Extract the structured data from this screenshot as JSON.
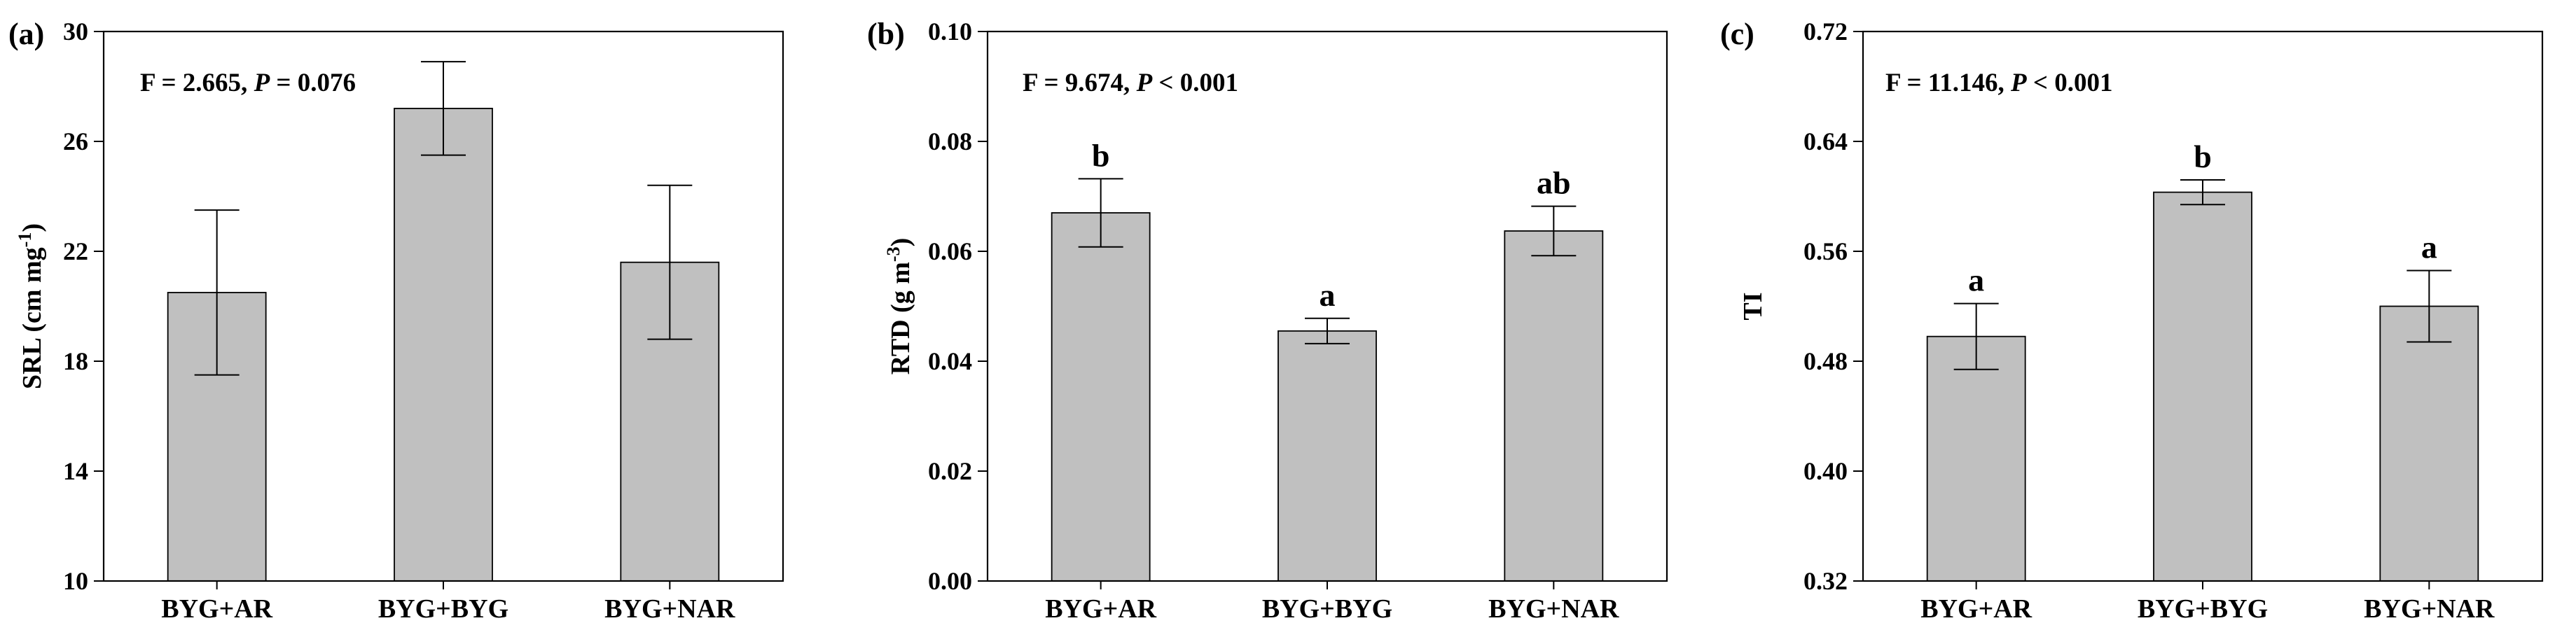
{
  "chart_data": [
    {
      "type": "bar",
      "panel": "(a)",
      "stat": {
        "f": "F = 2.665, ",
        "p_letter": "P",
        "p_rest": " = 0.076"
      },
      "ylabel": {
        "main": "SRL (cm mg",
        "sup": "-1",
        "close": ")"
      },
      "categories": [
        "BYG+AR",
        "BYG+BYG",
        "BYG+NAR"
      ],
      "values": [
        20.5,
        27.2,
        21.6
      ],
      "errors": [
        3.0,
        1.7,
        2.8
      ],
      "significance": [
        "",
        "",
        ""
      ],
      "ylim": [
        10,
        30
      ],
      "yticks": [
        10,
        14,
        18,
        22,
        26,
        30
      ],
      "ytick_labels": [
        "10",
        "14",
        "18",
        "22",
        "26",
        "30"
      ]
    },
    {
      "type": "bar",
      "panel": "(b)",
      "stat": {
        "f": "F = 9.674, ",
        "p_letter": "P",
        "p_rest": " < 0.001"
      },
      "ylabel": {
        "main": "RTD (g m",
        "sup": "-3",
        "close": ")"
      },
      "categories": [
        "BYG+AR",
        "BYG+BYG",
        "BYG+NAR"
      ],
      "values": [
        0.067,
        0.0455,
        0.0637
      ],
      "errors": [
        0.0062,
        0.0023,
        0.0045
      ],
      "significance": [
        "b",
        "a",
        "ab"
      ],
      "ylim": [
        0,
        0.1
      ],
      "yticks": [
        0,
        0.02,
        0.04,
        0.06,
        0.08,
        0.1
      ],
      "ytick_labels": [
        "0.00",
        "0.02",
        "0.04",
        "0.06",
        "0.08",
        "0.10"
      ]
    },
    {
      "type": "bar",
      "panel": "(c)",
      "stat": {
        "f": "F = 11.146, ",
        "p_letter": "P",
        "p_rest": " < 0.001"
      },
      "ylabel": {
        "main": "TI",
        "sup": "",
        "close": ""
      },
      "categories": [
        "BYG+AR",
        "BYG+BYG",
        "BYG+NAR"
      ],
      "values": [
        0.498,
        0.603,
        0.52
      ],
      "errors": [
        0.024,
        0.009,
        0.026
      ],
      "significance": [
        "a",
        "b",
        "a"
      ],
      "ylim": [
        0.32,
        0.72
      ],
      "yticks": [
        0.32,
        0.4,
        0.48,
        0.56,
        0.64,
        0.72
      ],
      "ytick_labels": [
        "0.32",
        "0.40",
        "0.48",
        "0.56",
        "0.64",
        "0.72"
      ]
    }
  ]
}
